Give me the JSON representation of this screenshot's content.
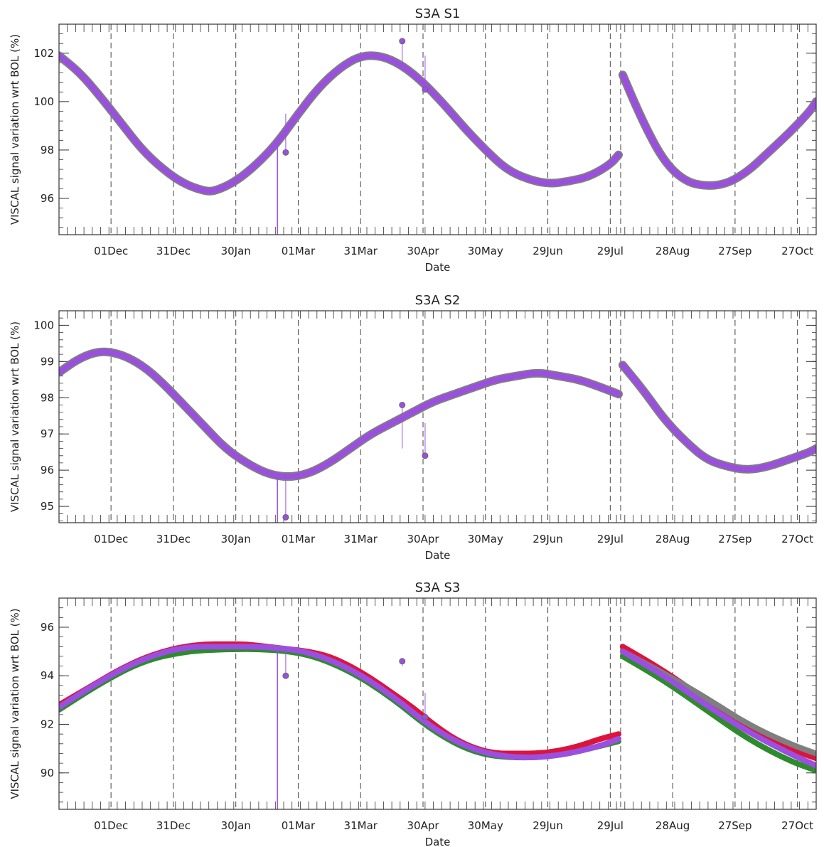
{
  "chart_data": [
    {
      "type": "line",
      "title": "S3A S1",
      "xlabel": "Date",
      "ylabel": "VISCAL signal variation wrt BOL (%)",
      "xlim": [
        "2017-11-06",
        "2018-11-05"
      ],
      "ylim": [
        94.5,
        103.2
      ],
      "x_ticks": [
        "01Dec",
        "31Dec",
        "30Jan",
        "01Mar",
        "31Mar",
        "30Apr",
        "30May",
        "29Jun",
        "29Jul",
        "28Aug",
        "27Sep",
        "27Oct"
      ],
      "y_ticks": [
        96,
        98,
        100,
        102
      ],
      "grid": "vertical dashed lines at date ticks",
      "colors": [
        "#7f7f7f",
        "#2e8b2e",
        "#dc143c",
        "#9b4fe0"
      ],
      "series": [
        {
          "color": "#9b4fe0",
          "x": [
            "2017-11-06",
            "2017-11-16",
            "2017-11-26",
            "2017-12-06",
            "2017-12-16",
            "2017-12-26",
            "2018-01-05",
            "2018-01-15",
            "2018-01-20",
            "2018-01-30",
            "2018-02-09",
            "2018-02-19",
            "2018-03-01",
            "2018-03-11",
            "2018-03-21",
            "2018-03-31",
            "2018-04-10",
            "2018-04-20",
            "2018-04-30",
            "2018-05-10",
            "2018-05-20",
            "2018-05-30",
            "2018-06-09",
            "2018-06-19",
            "2018-06-29",
            "2018-07-09",
            "2018-07-19",
            "2018-07-29",
            "2018-08-02"
          ],
          "y": [
            101.9,
            101.2,
            100.2,
            99.1,
            98.0,
            97.2,
            96.6,
            96.3,
            96.3,
            96.7,
            97.4,
            98.3,
            99.5,
            100.6,
            101.4,
            101.9,
            101.9,
            101.5,
            100.8,
            99.9,
            98.9,
            98.0,
            97.2,
            96.8,
            96.6,
            96.7,
            96.9,
            97.4,
            97.8
          ]
        },
        {
          "color": "#9b4fe0",
          "x": [
            "2018-08-04",
            "2018-08-14",
            "2018-08-24",
            "2018-09-03",
            "2018-09-13",
            "2018-09-23",
            "2018-10-03",
            "2018-10-13",
            "2018-10-23",
            "2018-11-02",
            "2018-11-05"
          ],
          "y": [
            101.1,
            99.1,
            97.5,
            96.7,
            96.5,
            96.6,
            97.1,
            97.9,
            98.7,
            99.6,
            100.0
          ]
        }
      ],
      "outliers": [
        {
          "x": "2018-02-23",
          "y": 97.9
        },
        {
          "x": "2018-04-20",
          "y": 102.5
        },
        {
          "x": "2018-05-01",
          "y": 100.5
        }
      ]
    },
    {
      "type": "line",
      "title": "S3A S2",
      "xlabel": "Date",
      "ylabel": "VISCAL signal variation wrt BOL (%)",
      "xlim": [
        "2017-11-06",
        "2018-11-05"
      ],
      "ylim": [
        94.55,
        100.4
      ],
      "x_ticks": [
        "01Dec",
        "31Dec",
        "30Jan",
        "01Mar",
        "31Mar",
        "30Apr",
        "30May",
        "29Jun",
        "29Jul",
        "28Aug",
        "27Sep",
        "27Oct"
      ],
      "y_ticks": [
        95,
        96,
        97,
        98,
        99,
        100
      ],
      "grid": "vertical dashed lines at date ticks",
      "colors": [
        "#7f7f7f",
        "#2e8b2e",
        "#dc143c",
        "#9b4fe0"
      ],
      "series": [
        {
          "color": "#9b4fe0",
          "x": [
            "2017-11-06",
            "2017-11-16",
            "2017-11-26",
            "2017-12-06",
            "2017-12-16",
            "2017-12-26",
            "2018-01-05",
            "2018-01-15",
            "2018-01-25",
            "2018-02-04",
            "2018-02-14",
            "2018-02-24",
            "2018-03-06",
            "2018-03-16",
            "2018-03-26",
            "2018-04-05",
            "2018-04-15",
            "2018-04-25",
            "2018-05-05",
            "2018-05-15",
            "2018-05-25",
            "2018-06-04",
            "2018-06-14",
            "2018-06-24",
            "2018-07-04",
            "2018-07-14",
            "2018-07-24",
            "2018-08-02"
          ],
          "y": [
            98.7,
            99.1,
            99.3,
            99.2,
            98.9,
            98.4,
            97.8,
            97.2,
            96.6,
            96.2,
            95.9,
            95.8,
            95.9,
            96.2,
            96.6,
            97.0,
            97.3,
            97.6,
            97.9,
            98.1,
            98.3,
            98.5,
            98.6,
            98.7,
            98.6,
            98.5,
            98.3,
            98.1
          ]
        },
        {
          "color": "#9b4fe0",
          "x": [
            "2018-08-04",
            "2018-08-14",
            "2018-08-24",
            "2018-09-03",
            "2018-09-13",
            "2018-09-23",
            "2018-10-03",
            "2018-10-13",
            "2018-10-23",
            "2018-11-02",
            "2018-11-05"
          ],
          "y": [
            98.9,
            98.2,
            97.4,
            96.8,
            96.3,
            96.1,
            96.0,
            96.1,
            96.3,
            96.5,
            96.6
          ]
        }
      ],
      "outliers": [
        {
          "x": "2018-02-23",
          "y": 94.7
        },
        {
          "x": "2018-04-20",
          "y": 97.8
        },
        {
          "x": "2018-05-01",
          "y": 96.4
        }
      ]
    },
    {
      "type": "line",
      "title": "S3A S3",
      "xlabel": "Date",
      "ylabel": "VISCAL signal variation wrt BOL (%)",
      "xlim": [
        "2017-11-06",
        "2018-11-05"
      ],
      "ylim": [
        88.5,
        97.2
      ],
      "x_ticks": [
        "01Dec",
        "31Dec",
        "30Jan",
        "01Mar",
        "31Mar",
        "30Apr",
        "30May",
        "29Jun",
        "29Jul",
        "28Aug",
        "27Sep",
        "27Oct"
      ],
      "y_ticks": [
        90,
        92,
        94,
        96
      ],
      "grid": "vertical dashed lines at date ticks",
      "colors": [
        "#7f7f7f",
        "#2e8b2e",
        "#dc143c",
        "#9b4fe0"
      ],
      "series": [
        {
          "color": "#dc143c",
          "x": [
            "2017-11-06",
            "2017-11-16",
            "2017-11-26",
            "2017-12-06",
            "2017-12-16",
            "2017-12-26",
            "2018-01-05",
            "2018-01-15",
            "2018-01-25",
            "2018-02-04",
            "2018-02-14",
            "2018-02-24",
            "2018-03-06",
            "2018-03-16",
            "2018-03-26",
            "2018-04-05",
            "2018-04-15",
            "2018-04-25",
            "2018-05-05",
            "2018-05-15",
            "2018-05-25",
            "2018-06-04",
            "2018-06-14",
            "2018-06-24",
            "2018-07-04",
            "2018-07-14",
            "2018-07-24",
            "2018-08-02"
          ],
          "y": [
            92.8,
            93.3,
            93.8,
            94.3,
            94.7,
            95.0,
            95.2,
            95.3,
            95.3,
            95.3,
            95.2,
            95.1,
            95.0,
            94.8,
            94.4,
            93.9,
            93.3,
            92.7,
            92.0,
            91.4,
            91.0,
            90.8,
            90.8,
            90.8,
            90.9,
            91.1,
            91.4,
            91.6
          ]
        },
        {
          "color": "#2e8b2e",
          "x": [
            "2017-11-06",
            "2017-11-26",
            "2017-12-16",
            "2018-01-05",
            "2018-01-25",
            "2018-02-14",
            "2018-03-06",
            "2018-03-26",
            "2018-04-15",
            "2018-05-05",
            "2018-05-25",
            "2018-06-14",
            "2018-07-04",
            "2018-07-24",
            "2018-08-02"
          ],
          "y": [
            92.6,
            93.7,
            94.6,
            95.0,
            95.1,
            95.1,
            94.9,
            94.2,
            93.1,
            91.7,
            90.8,
            90.6,
            90.7,
            91.1,
            91.3
          ]
        },
        {
          "color": "#9b4fe0",
          "x": [
            "2017-11-06",
            "2017-11-26",
            "2017-12-16",
            "2018-01-05",
            "2018-01-25",
            "2018-02-14",
            "2018-03-06",
            "2018-03-26",
            "2018-04-15",
            "2018-05-05",
            "2018-05-25",
            "2018-06-14",
            "2018-07-04",
            "2018-07-24",
            "2018-08-02"
          ],
          "y": [
            92.7,
            93.8,
            94.7,
            95.2,
            95.2,
            95.2,
            95.0,
            94.3,
            93.2,
            91.8,
            90.9,
            90.6,
            90.7,
            91.1,
            91.4
          ]
        },
        {
          "color": "#dc143c",
          "x": [
            "2018-08-04",
            "2018-08-24",
            "2018-09-13",
            "2018-10-03",
            "2018-10-23",
            "2018-11-05"
          ],
          "y": [
            95.2,
            94.2,
            93.0,
            91.9,
            91.0,
            90.6
          ]
        },
        {
          "color": "#2e8b2e",
          "x": [
            "2018-08-04",
            "2018-08-24",
            "2018-09-13",
            "2018-10-03",
            "2018-10-23",
            "2018-11-05"
          ],
          "y": [
            94.8,
            93.8,
            92.6,
            91.4,
            90.5,
            90.1
          ]
        },
        {
          "color": "#7f7f7f",
          "x": [
            "2018-08-04",
            "2018-08-24",
            "2018-09-13",
            "2018-10-03",
            "2018-10-23",
            "2018-11-05"
          ],
          "y": [
            95.0,
            94.1,
            93.1,
            92.0,
            91.2,
            90.8
          ]
        },
        {
          "color": "#9b4fe0",
          "x": [
            "2018-08-04",
            "2018-08-24",
            "2018-09-13",
            "2018-10-03",
            "2018-10-23",
            "2018-11-05"
          ],
          "y": [
            95.0,
            94.0,
            92.8,
            91.7,
            90.8,
            90.3
          ]
        }
      ],
      "outliers": [
        {
          "x": "2018-02-23",
          "y": 94.0
        },
        {
          "x": "2018-04-20",
          "y": 94.6
        },
        {
          "x": "2018-05-01",
          "y": 92.3
        }
      ]
    }
  ]
}
